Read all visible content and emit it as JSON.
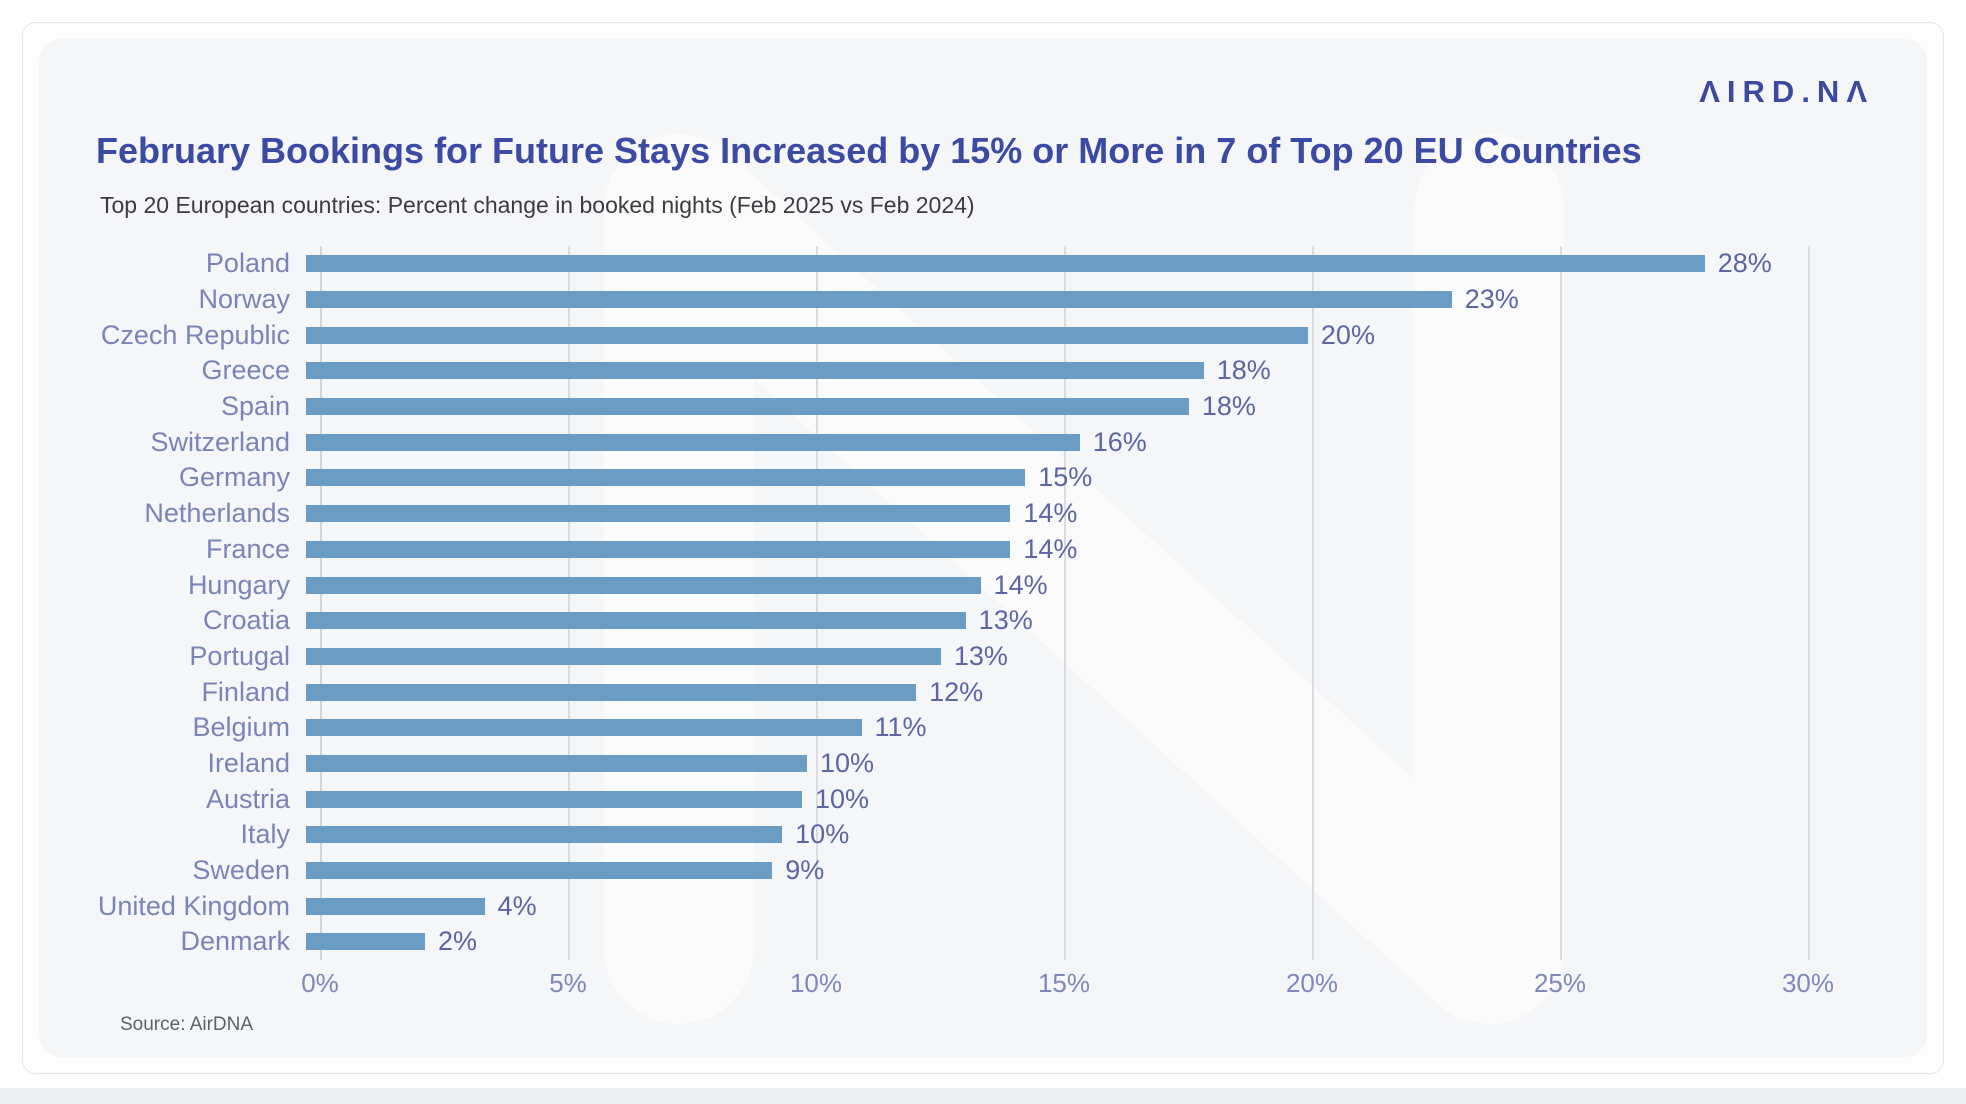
{
  "logo": {
    "text": "ΛIRD.NΛ"
  },
  "header": {
    "title": "February Bookings for Future Stays Increased by 15% or More in 7 of Top 20 EU Countries",
    "subtitle": "Top 20 European countries: Percent change in booked nights (Feb 2025 vs Feb 2024)"
  },
  "footer": {
    "source": "Source: AirDNA"
  },
  "colors": {
    "bar": "#6b9cc4",
    "country_label": "#7b84b8",
    "value_label": "#5d65a5",
    "axis_tick": "#7f87bb",
    "title": "#3b4aa2",
    "gridline": "#dadce1"
  },
  "chart_data": {
    "type": "bar",
    "orientation": "horizontal",
    "title": "February Bookings for Future Stays Increased by 15% or More in 7 of Top 20 EU Countries",
    "subtitle": "Top 20 European countries: Percent change in booked nights (Feb 2025 vs Feb 2024)",
    "xlabel": "",
    "ylabel": "",
    "categories": [
      "Poland",
      "Norway",
      "Czech Republic",
      "Greece",
      "Spain",
      "Switzerland",
      "Germany",
      "Netherlands",
      "France",
      "Hungary",
      "Croatia",
      "Portugal",
      "Finland",
      "Belgium",
      "Ireland",
      "Austria",
      "Italy",
      "Sweden",
      "United Kingdom",
      "Denmark"
    ],
    "values": [
      28,
      23,
      20,
      18,
      18,
      16,
      15,
      14,
      14,
      14,
      13,
      13,
      12,
      11,
      10,
      10,
      10,
      9,
      4,
      2
    ],
    "value_labels": [
      "28%",
      "23%",
      "20%",
      "18%",
      "18%",
      "16%",
      "15%",
      "14%",
      "14%",
      "14%",
      "13%",
      "13%",
      "12%",
      "11%",
      "10%",
      "10%",
      "10%",
      "9%",
      "4%",
      "2%"
    ],
    "bar_lengths_pct": [
      28.2,
      23.1,
      20.2,
      18.1,
      17.8,
      15.6,
      14.5,
      14.2,
      14.2,
      13.6,
      13.3,
      12.8,
      12.3,
      11.2,
      10.1,
      10.0,
      9.6,
      9.4,
      3.6,
      2.4
    ],
    "x_ticks": [
      "0%",
      "5%",
      "10%",
      "15%",
      "20%",
      "25%",
      "30%"
    ],
    "x_tick_values": [
      0,
      5,
      10,
      15,
      20,
      25,
      30
    ],
    "xlim": [
      0,
      30
    ],
    "grid": "vertical",
    "legend": "none",
    "source": "Source: AirDNA"
  }
}
